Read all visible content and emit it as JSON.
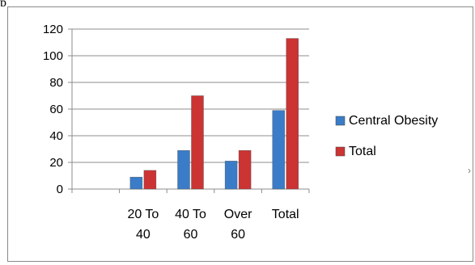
{
  "page_fragment": "p",
  "right_mark": "›",
  "chart_data": {
    "type": "bar",
    "title": "",
    "xlabel": "",
    "ylabel": "",
    "categories": [
      "",
      "20 To 40",
      "40 To 60",
      "Over 60",
      "Total"
    ],
    "category_lines": [
      [],
      [
        "20 To",
        "40"
      ],
      [
        "40 To",
        "60"
      ],
      [
        "Over",
        "60"
      ],
      [
        "Total"
      ]
    ],
    "series": [
      {
        "name": "Central Obesity",
        "color": "#3a7cc8",
        "values": [
          null,
          9,
          29,
          21,
          59
        ]
      },
      {
        "name": "Total",
        "color": "#cc3333",
        "values": [
          null,
          14,
          70,
          29,
          113
        ]
      }
    ],
    "ylim": [
      0,
      120
    ],
    "yticks": [
      0,
      20,
      40,
      60,
      80,
      100,
      120
    ],
    "grid": true,
    "legend_position": "right"
  }
}
